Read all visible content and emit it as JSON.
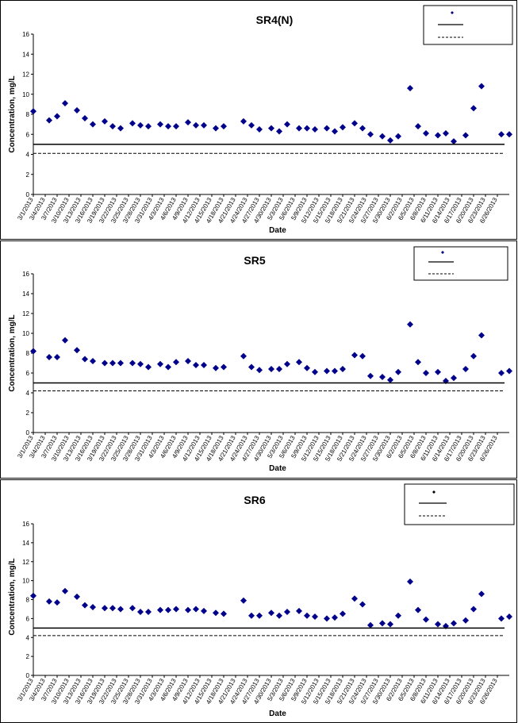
{
  "chart_data": [
    {
      "type": "scatter",
      "title": "SR4(N)",
      "xlabel": "Date",
      "ylabel": "Concentration, mg/L",
      "ylim": [
        0,
        16
      ],
      "yticks": [
        0,
        2,
        4,
        6,
        8,
        10,
        12,
        14,
        16
      ],
      "grid": false,
      "legend_position": "top-right",
      "xticks": [
        "3/1/2013",
        "3/4/2013",
        "3/7/2013",
        "3/10/2013",
        "3/13/2013",
        "3/16/2013",
        "3/19/2013",
        "3/22/2013",
        "3/25/2013",
        "3/28/2013",
        "3/31/2013",
        "4/3/2013",
        "4/6/2013",
        "4/9/2013",
        "4/12/2013",
        "4/15/2013",
        "4/18/2013",
        "4/21/2013",
        "4/24/2013",
        "4/27/2013",
        "4/30/2013",
        "5/3/2013",
        "5/6/2013",
        "5/9/2013",
        "5/12/2013",
        "5/15/2013",
        "5/18/2013",
        "5/21/2013",
        "5/24/2013",
        "5/27/2013",
        "5/30/2013",
        "6/2/2013",
        "6/5/2013",
        "6/8/2013",
        "6/11/2013",
        "6/14/2013",
        "6/17/2013",
        "6/20/2013",
        "6/23/2013",
        "6/26/2013"
      ],
      "series": [
        {
          "type": "scatter",
          "color": "#00008B",
          "x": [
            "3/1/2013",
            "3/5/2013",
            "3/7/2013",
            "3/9/2013",
            "3/12/2013",
            "3/14/2013",
            "3/16/2013",
            "3/19/2013",
            "3/21/2013",
            "3/23/2013",
            "3/26/2013",
            "3/28/2013",
            "3/30/2013",
            "4/2/2013",
            "4/4/2013",
            "4/6/2013",
            "4/9/2013",
            "4/11/2013",
            "4/13/2013",
            "4/16/2013",
            "4/18/2013",
            "4/23/2013",
            "4/25/2013",
            "4/27/2013",
            "4/30/2013",
            "5/2/2013",
            "5/4/2013",
            "5/7/2013",
            "5/9/2013",
            "5/11/2013",
            "5/14/2013",
            "5/16/2013",
            "5/18/2013",
            "5/21/2013",
            "5/23/2013",
            "5/25/2013",
            "5/28/2013",
            "5/30/2013",
            "6/1/2013",
            "6/4/2013",
            "6/6/2013",
            "6/8/2013",
            "6/11/2013",
            "6/13/2013",
            "6/15/2013",
            "6/18/2013",
            "6/20/2013",
            "6/22/2013",
            "6/27/2013",
            "6/29/2013"
          ],
          "y": [
            8.3,
            7.4,
            7.8,
            9.1,
            8.4,
            7.6,
            7.0,
            7.3,
            6.8,
            6.6,
            7.1,
            6.9,
            6.8,
            7.0,
            6.8,
            6.8,
            7.2,
            6.9,
            6.9,
            6.6,
            6.8,
            7.3,
            6.9,
            6.5,
            6.6,
            6.3,
            7.0,
            6.6,
            6.6,
            6.5,
            6.6,
            6.3,
            6.7,
            7.1,
            6.6,
            6.0,
            5.8,
            5.4,
            5.8,
            10.6,
            6.8,
            6.1,
            5.9,
            6.1,
            5.3,
            5.9,
            8.6,
            10.8,
            6.0,
            6.0
          ]
        },
        {
          "type": "line",
          "style": "solid",
          "value": 5.0
        },
        {
          "type": "line",
          "style": "dashed",
          "value": 4.1
        }
      ]
    },
    {
      "type": "scatter",
      "title": "SR5",
      "xlabel": "Date",
      "ylabel": "Concentration, mg/L",
      "ylim": [
        0,
        16
      ],
      "yticks": [
        0,
        2,
        4,
        6,
        8,
        10,
        12,
        14,
        16
      ],
      "grid": false,
      "legend_position": "top-right",
      "xticks": [
        "3/1/2013",
        "3/4/2013",
        "3/7/2013",
        "3/10/2013",
        "3/13/2013",
        "3/16/2013",
        "3/19/2013",
        "3/22/2013",
        "3/25/2013",
        "3/28/2013",
        "3/31/2013",
        "4/3/2013",
        "4/6/2013",
        "4/9/2013",
        "4/12/2013",
        "4/15/2013",
        "4/18/2013",
        "4/21/2013",
        "4/24/2013",
        "4/27/2013",
        "4/30/2013",
        "5/3/2013",
        "5/6/2013",
        "5/9/2013",
        "5/12/2013",
        "5/15/2013",
        "5/18/2013",
        "5/21/2013",
        "5/24/2013",
        "5/27/2013",
        "5/30/2013",
        "6/2/2013",
        "6/5/2013",
        "6/8/2013",
        "6/11/2013",
        "6/14/2013",
        "6/17/2013",
        "6/20/2013",
        "6/23/2013",
        "6/26/2013"
      ],
      "series": [
        {
          "type": "scatter",
          "color": "#00008B",
          "x": [
            "3/1/2013",
            "3/5/2013",
            "3/7/2013",
            "3/9/2013",
            "3/12/2013",
            "3/14/2013",
            "3/16/2013",
            "3/19/2013",
            "3/21/2013",
            "3/23/2013",
            "3/26/2013",
            "3/28/2013",
            "3/30/2013",
            "4/2/2013",
            "4/4/2013",
            "4/6/2013",
            "4/9/2013",
            "4/11/2013",
            "4/13/2013",
            "4/16/2013",
            "4/18/2013",
            "4/23/2013",
            "4/25/2013",
            "4/27/2013",
            "4/30/2013",
            "5/2/2013",
            "5/4/2013",
            "5/7/2013",
            "5/9/2013",
            "5/11/2013",
            "5/14/2013",
            "5/16/2013",
            "5/18/2013",
            "5/21/2013",
            "5/23/2013",
            "5/25/2013",
            "5/28/2013",
            "5/30/2013",
            "6/1/2013",
            "6/4/2013",
            "6/6/2013",
            "6/8/2013",
            "6/11/2013",
            "6/13/2013",
            "6/15/2013",
            "6/18/2013",
            "6/20/2013",
            "6/22/2013",
            "6/27/2013",
            "6/29/2013"
          ],
          "y": [
            8.2,
            7.6,
            7.6,
            9.3,
            8.3,
            7.4,
            7.2,
            7.0,
            7.0,
            7.0,
            7.0,
            6.9,
            6.6,
            6.9,
            6.6,
            7.1,
            7.2,
            6.8,
            6.8,
            6.5,
            6.6,
            7.7,
            6.6,
            6.3,
            6.4,
            6.4,
            6.9,
            7.1,
            6.5,
            6.1,
            6.2,
            6.2,
            6.4,
            7.8,
            7.7,
            5.7,
            5.6,
            5.3,
            6.1,
            10.9,
            7.1,
            6.0,
            6.1,
            5.2,
            5.5,
            6.4,
            7.7,
            9.8,
            6.0,
            6.2
          ]
        },
        {
          "type": "line",
          "style": "solid",
          "value": 5.0
        },
        {
          "type": "line",
          "style": "dashed",
          "value": 4.2
        }
      ]
    },
    {
      "type": "scatter",
      "title": "SR6",
      "xlabel": "Date",
      "ylabel": "Concentration, mg/L",
      "ylim": [
        0,
        16
      ],
      "yticks": [
        0,
        2,
        4,
        6,
        8,
        10,
        12,
        14,
        16
      ],
      "grid": false,
      "legend_position": "top-right",
      "xticks": [
        "3/1/2013",
        "3/4/2013",
        "3/7/2013",
        "3/10/2013",
        "3/13/2013",
        "3/16/2013",
        "3/19/2013",
        "3/22/2013",
        "3/25/2013",
        "3/28/2013",
        "3/31/2013",
        "4/3/2013",
        "4/6/2013",
        "4/9/2013",
        "4/12/2013",
        "4/15/2013",
        "4/18/2013",
        "4/21/2013",
        "4/24/2013",
        "4/27/2013",
        "4/30/2013",
        "5/3/2013",
        "5/6/2013",
        "5/9/2013",
        "5/12/2013",
        "5/15/2013",
        "5/18/2013",
        "5/21/2013",
        "5/24/2013",
        "5/27/2013",
        "5/30/2013",
        "6/2/2013",
        "6/5/2013",
        "6/8/2013",
        "6/11/2013",
        "6/14/2013",
        "6/17/2013",
        "6/20/2013",
        "6/23/2013",
        "6/26/2013"
      ],
      "series": [
        {
          "type": "scatter",
          "color": "#00008B",
          "x": [
            "3/1/2013",
            "3/5/2013",
            "3/7/2013",
            "3/9/2013",
            "3/12/2013",
            "3/14/2013",
            "3/16/2013",
            "3/19/2013",
            "3/21/2013",
            "3/23/2013",
            "3/26/2013",
            "3/28/2013",
            "3/30/2013",
            "4/2/2013",
            "4/4/2013",
            "4/6/2013",
            "4/9/2013",
            "4/11/2013",
            "4/13/2013",
            "4/16/2013",
            "4/18/2013",
            "4/23/2013",
            "4/25/2013",
            "4/27/2013",
            "4/30/2013",
            "5/2/2013",
            "5/4/2013",
            "5/7/2013",
            "5/9/2013",
            "5/11/2013",
            "5/14/2013",
            "5/16/2013",
            "5/18/2013",
            "5/21/2013",
            "5/23/2013",
            "5/25/2013",
            "5/28/2013",
            "5/30/2013",
            "6/1/2013",
            "6/4/2013",
            "6/6/2013",
            "6/8/2013",
            "6/11/2013",
            "6/13/2013",
            "6/15/2013",
            "6/18/2013",
            "6/20/2013",
            "6/22/2013",
            "6/27/2013",
            "6/29/2013"
          ],
          "y": [
            8.4,
            7.8,
            7.7,
            8.9,
            8.3,
            7.4,
            7.2,
            7.1,
            7.1,
            7.0,
            7.1,
            6.7,
            6.7,
            6.9,
            6.9,
            7.0,
            6.9,
            7.0,
            6.8,
            6.6,
            6.5,
            7.9,
            6.3,
            6.3,
            6.6,
            6.3,
            6.7,
            6.8,
            6.3,
            6.2,
            6.0,
            6.1,
            6.5,
            8.1,
            7.5,
            5.3,
            5.5,
            5.4,
            6.3,
            9.9,
            6.9,
            5.9,
            5.4,
            5.2,
            5.5,
            5.8,
            7.0,
            8.6,
            6.0,
            6.2
          ]
        },
        {
          "type": "line",
          "style": "solid",
          "value": 5.0
        },
        {
          "type": "line",
          "style": "dashed",
          "value": 4.2
        }
      ]
    }
  ]
}
